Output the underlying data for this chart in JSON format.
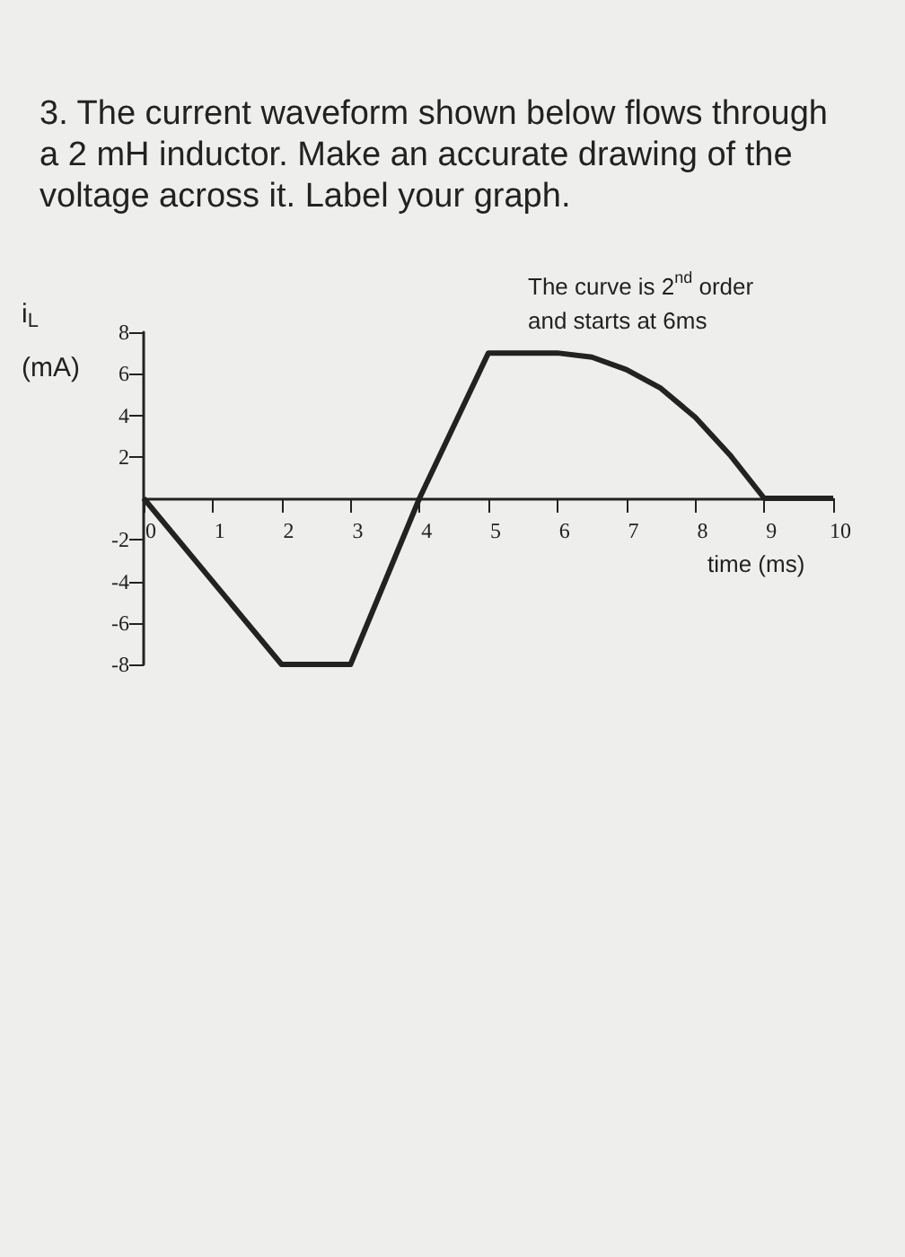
{
  "chart_data": {
    "type": "line",
    "title": "3. The current waveform shown below flows through a 2 mH inductor. Make an accurate drawing of the voltage across it. Label your graph.",
    "ylabel": "i$_{L}$ (mA)",
    "xlabel": "time (ms)",
    "annotations": [
      "The curve is 2$^{nd}$ order and starts at 6ms"
    ],
    "x": [
      0,
      2,
      3,
      4,
      5,
      6,
      6.5,
      7,
      7.5,
      8,
      8.5,
      9,
      10
    ],
    "series": [
      {
        "color": "#222222",
        "values": [
          0,
          -8,
          -8,
          0,
          7,
          7,
          6.8,
          6.2,
          5.3,
          3.9,
          2.1,
          0,
          0
        ]
      }
    ],
    "xlim": [
      0,
      10
    ],
    "xticks": [
      0,
      1,
      2,
      3,
      4,
      5,
      6,
      7,
      8,
      9,
      10
    ],
    "ylim": [
      -8,
      8
    ],
    "yticks": [
      -8,
      -6,
      -4,
      -2,
      2,
      4,
      6,
      8
    ],
    "marker": "none",
    "line_style": "solid",
    "grid": false
  }
}
